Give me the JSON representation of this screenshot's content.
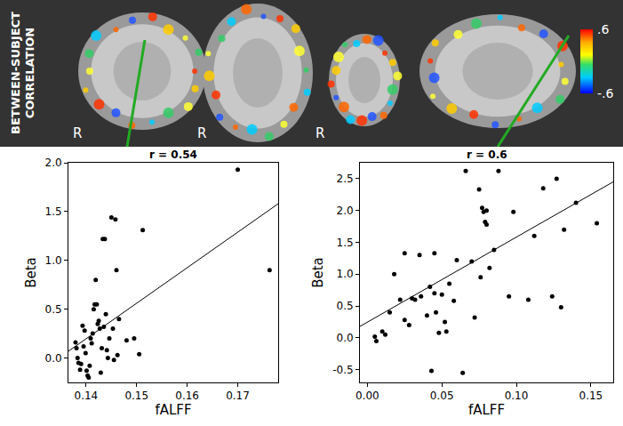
{
  "header": {
    "label": "BETWEEN-SUBJECT CORRELATION",
    "orientation_labels": [
      "R",
      "R",
      "R"
    ],
    "colorbar": {
      "range": [
        -0.6,
        0.6
      ],
      "ticks": [
        {
          "value": 0.6,
          "label": ".6"
        },
        {
          "value": -0.6,
          "label": "-.6"
        }
      ]
    }
  },
  "chart_data": [
    {
      "type": "scatter",
      "title": "r = 0.54",
      "x_label": "fALFF",
      "y_label": "Beta",
      "color": "#000000",
      "grid": false,
      "x": [
        0.1379,
        0.1381,
        0.1383,
        0.1385,
        0.1388,
        0.139,
        0.1393,
        0.1395,
        0.1397,
        0.1399,
        0.1401,
        0.1403,
        0.1405,
        0.1407,
        0.1409,
        0.1411,
        0.1413,
        0.1415,
        0.1417,
        0.1419,
        0.1421,
        0.1423,
        0.1425,
        0.1427,
        0.1429,
        0.1431,
        0.1433,
        0.1435,
        0.1437,
        0.1439,
        0.1441,
        0.1443,
        0.1446,
        0.145,
        0.1453,
        0.1455,
        0.1458,
        0.146,
        0.1462,
        0.1465,
        0.148,
        0.1495,
        0.1505,
        0.1512,
        0.17,
        0.1763
      ],
      "values": [
        0.16,
        0.1,
        0.0,
        -0.05,
        -0.12,
        -0.06,
        0.33,
        0.12,
        0.28,
        0.05,
        -0.13,
        -0.18,
        -0.2,
        -0.08,
        0.2,
        0.15,
        0.25,
        0.5,
        0.55,
        0.8,
        0.55,
        0.35,
        0.38,
        0.3,
        -0.15,
        0.1,
        1.22,
        0.32,
        1.22,
        0.45,
        0.08,
        0.0,
        0.2,
        1.44,
        0.3,
        -0.02,
        1.42,
        0.9,
        0.03,
        0.4,
        0.18,
        0.2,
        0.04,
        1.31,
        1.93,
        0.9
      ],
      "fit": {
        "x": [
          0.1365,
          0.178
        ],
        "values": [
          0.07,
          1.58
        ]
      },
      "xlim": [
        0.1365,
        0.178
      ],
      "ylim": [
        -0.25,
        2.0
      ],
      "xticks": [
        0.14,
        0.15,
        0.16,
        0.17
      ],
      "yticks": [
        {
          "value": 0,
          "label": "0.0"
        },
        0.5,
        {
          "value": 1,
          "label": "1.0"
        },
        1.5,
        {
          "value": 2,
          "label": "2.0"
        }
      ]
    },
    {
      "type": "scatter",
      "title": "r = 0.6",
      "x_label": "fALFF",
      "y_label": "Beta",
      "color": "#000000",
      "grid": false,
      "x": [
        0.005,
        0.006,
        0.01,
        0.012,
        0.015,
        0.018,
        0.022,
        0.025,
        0.025,
        0.028,
        0.03,
        0.032,
        0.035,
        0.036,
        0.04,
        0.042,
        0.043,
        0.045,
        0.045,
        0.046,
        0.048,
        0.05,
        0.052,
        0.053,
        0.055,
        0.058,
        0.06,
        0.064,
        0.066,
        0.07,
        0.072,
        0.075,
        0.076,
        0.077,
        0.078,
        0.079,
        0.08,
        0.08,
        0.082,
        0.085,
        0.088,
        0.095,
        0.098,
        0.108,
        0.112,
        0.118,
        0.124,
        0.127,
        0.13,
        0.132,
        0.14,
        0.154
      ],
      "values": [
        0.02,
        -0.05,
        0.1,
        0.05,
        0.4,
        1.0,
        0.6,
        0.28,
        1.33,
        0.2,
        0.62,
        0.6,
        1.3,
        0.65,
        0.35,
        0.8,
        -0.52,
        1.33,
        0.7,
        0.4,
        0.08,
        0.68,
        0.25,
        0.1,
        0.85,
        0.58,
        1.22,
        -0.55,
        2.62,
        1.2,
        0.32,
        2.33,
        0.95,
        2.04,
        1.98,
        1.82,
        1.78,
        2.0,
        1.1,
        1.38,
        2.62,
        0.65,
        1.98,
        0.6,
        1.6,
        2.35,
        0.65,
        2.5,
        0.48,
        1.7,
        2.12,
        1.8
      ],
      "fit": {
        "x": [
          -0.005,
          0.165
        ],
        "values": [
          0.18,
          2.45
        ]
      },
      "xlim": [
        -0.005,
        0.165
      ],
      "ylim": [
        -0.7,
        2.75
      ],
      "xticks": [
        {
          "value": 0,
          "label": "0.00"
        },
        0.05,
        {
          "value": 0.1,
          "label": "0.10"
        },
        0.15
      ],
      "yticks": [
        -0.5,
        {
          "value": 0,
          "label": "0.0"
        },
        0.5,
        {
          "value": 1,
          "label": "1.0"
        },
        1.5,
        {
          "value": 2,
          "label": "2.0"
        },
        2.5
      ]
    }
  ]
}
